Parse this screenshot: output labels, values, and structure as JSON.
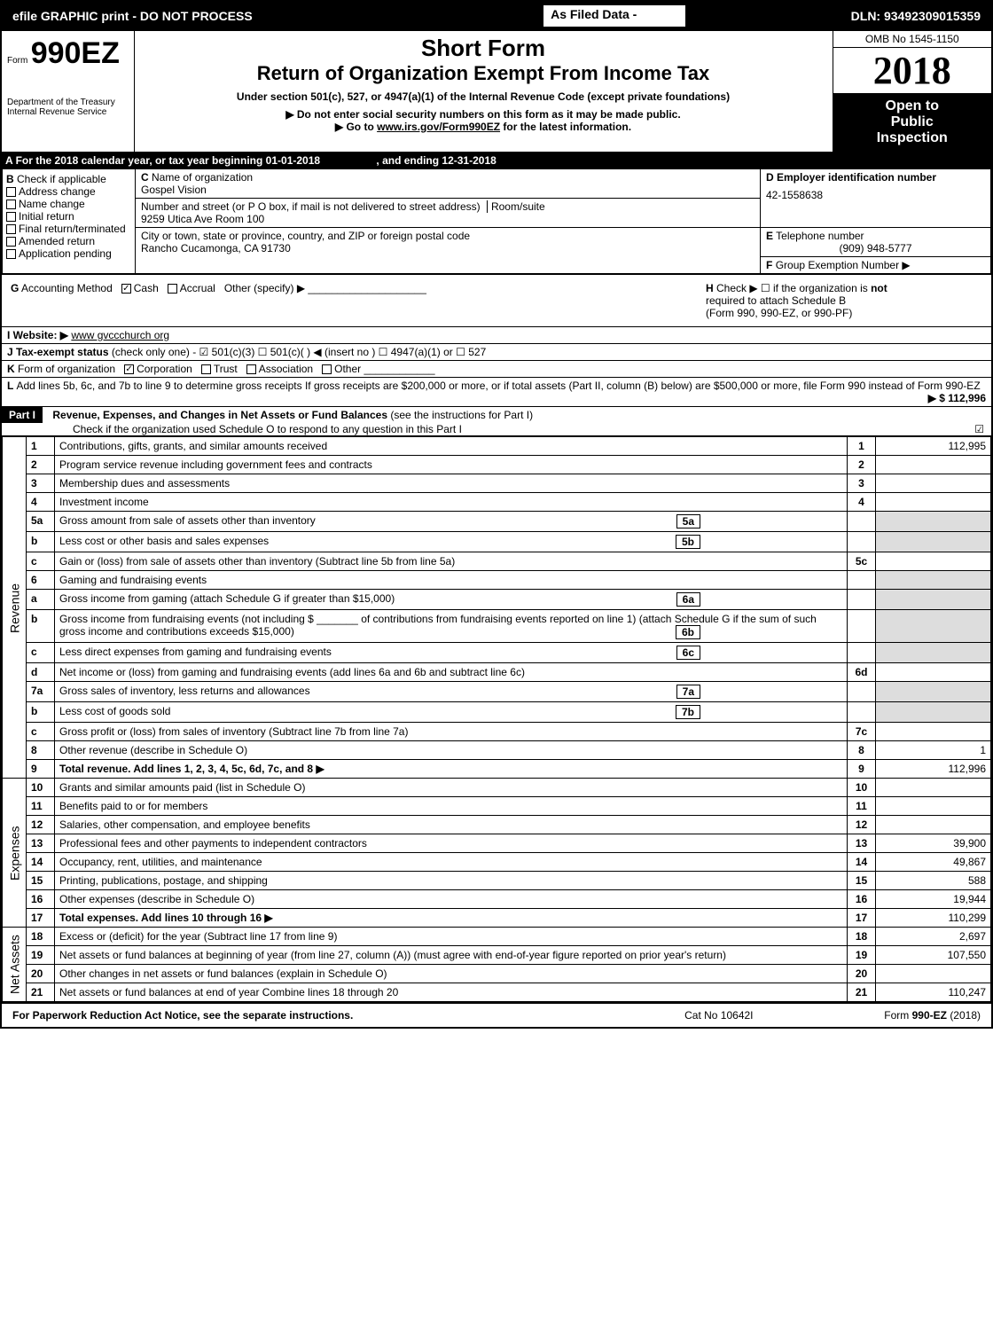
{
  "topbar": {
    "left": "efile GRAPHIC print - DO NOT PROCESS",
    "mid": "As Filed Data -",
    "right": "DLN: 93492309015359"
  },
  "header": {
    "form_prefix": "Form",
    "form_no": "990EZ",
    "short_form": "Short Form",
    "title": "Return of Organization Exempt From Income Tax",
    "subtitle": "Under section 501(c), 527, or 4947(a)(1) of the Internal Revenue Code (except private foundations)",
    "dept1": "Department of the Treasury",
    "dept2": "Internal Revenue Service",
    "note1": "▶ Do not enter social security numbers on this form as it may be made public.",
    "note2": "▶ Go to ",
    "note2_link": "www.irs.gov/Form990EZ",
    "note2_tail": " for the latest information.",
    "omb": "OMB No 1545-1150",
    "year": "2018",
    "open1": "Open to",
    "open2": "Public",
    "open3": "Inspection"
  },
  "sectionA": {
    "a_text": "For the 2018 calendar year, or tax year beginning 01-01-2018",
    "a_end": ", and ending 12-31-2018",
    "b_label": "B",
    "b_text": "Check if applicable",
    "b_items": [
      "Address change",
      "Name change",
      "Initial return",
      "Final return/terminated",
      "Amended return",
      "Application pending"
    ],
    "c_label": "C",
    "c_text": "Name of organization",
    "c_name": "Gospel Vision",
    "c_addr_label": "Number and street (or P O box, if mail is not delivered to street address)",
    "c_room": "Room/suite",
    "c_addr": "9259 Utica Ave Room 100",
    "c_city_label": "City or town, state or province, country, and ZIP or foreign postal code",
    "c_city": "Rancho Cucamonga, CA 91730",
    "d_label": "D Employer identification number",
    "d_val": "42-1558638",
    "e_label": "E",
    "e_text": "Telephone number",
    "e_val": "(909) 948-5777",
    "f_label": "F",
    "f_text": "Group Exemption Number  ▶",
    "g_label": "G",
    "g_text": "Accounting Method",
    "g_cash": "Cash",
    "g_accrual": "Accrual",
    "g_other": "Other (specify) ▶",
    "h_label": "H",
    "h_text1": "Check ▶  ☐  if the organization is ",
    "h_not": "not",
    "h_text2": "required to attach Schedule B",
    "h_text3": "(Form 990, 990-EZ, or 990-PF)",
    "i_label": "I Website: ▶",
    "i_val": "www gvccchurch org",
    "j_label": "J Tax-exempt status",
    "j_text": " (check only one) - ☑ 501(c)(3) ",
    "j_tail": "  ☐ 501(c)( ) ◀ (insert no ) ☐ 4947(a)(1) or ☐ 527",
    "k_label": "K",
    "k_text": "Form of organization",
    "k_corp": "Corporation",
    "k_trust": "Trust",
    "k_assoc": "Association",
    "k_other": "Other",
    "l_text1": "Add lines 5b, 6c, and 7b to line 9 to determine gross receipts  If gross receipts are $200,000 or more, or if total assets (Part II, column (B) below) are $500,000 or more, file Form 990 instead of Form 990-EZ",
    "l_amount": "▶ $ 112,996"
  },
  "part1": {
    "label": "Part I",
    "title": "Revenue, Expenses, and Changes in Net Assets or Fund Balances",
    "title_tail": " (see the instructions for Part I)",
    "check_text": "Check if the organization used Schedule O to respond to any question in this Part I",
    "check_mark": "☑"
  },
  "sections": {
    "revenue": "Revenue",
    "expenses": "Expenses",
    "netassets": "Net Assets"
  },
  "lines": [
    {
      "n": "1",
      "d": "Contributions, gifts, grants, and similar amounts received",
      "r": "1",
      "a": "112,995"
    },
    {
      "n": "2",
      "d": "Program service revenue including government fees and contracts",
      "r": "2",
      "a": ""
    },
    {
      "n": "3",
      "d": "Membership dues and assessments",
      "r": "3",
      "a": ""
    },
    {
      "n": "4",
      "d": "Investment income",
      "r": "4",
      "a": ""
    },
    {
      "n": "5a",
      "d": "Gross amount from sale of assets other than inventory",
      "sub": "5a"
    },
    {
      "n": "b",
      "d": "Less cost or other basis and sales expenses",
      "sub": "5b"
    },
    {
      "n": "c",
      "d": "Gain or (loss) from sale of assets other than inventory (Subtract line 5b from line 5a)",
      "r": "5c",
      "a": ""
    },
    {
      "n": "6",
      "d": "Gaming and fundraising events"
    },
    {
      "n": "a",
      "d": "Gross income from gaming (attach Schedule G if greater than $15,000)",
      "sub": "6a"
    },
    {
      "n": "b",
      "d": "Gross income from fundraising events (not including $ _______ of contributions from fundraising events reported on line 1) (attach Schedule G if the sum of such gross income and contributions exceeds $15,000)",
      "sub": "6b"
    },
    {
      "n": "c",
      "d": "Less direct expenses from gaming and fundraising events",
      "sub": "6c"
    },
    {
      "n": "d",
      "d": "Net income or (loss) from gaming and fundraising events (add lines 6a and 6b and subtract line 6c)",
      "r": "6d",
      "a": ""
    },
    {
      "n": "7a",
      "d": "Gross sales of inventory, less returns and allowances",
      "sub": "7a"
    },
    {
      "n": "b",
      "d": "Less cost of goods sold",
      "sub": "7b"
    },
    {
      "n": "c",
      "d": "Gross profit or (loss) from sales of inventory (Subtract line 7b from line 7a)",
      "r": "7c",
      "a": ""
    },
    {
      "n": "8",
      "d": "Other revenue (describe in Schedule O)",
      "r": "8",
      "a": "1"
    },
    {
      "n": "9",
      "d": "Total revenue. Add lines 1, 2, 3, 4, 5c, 6d, 7c, and 8  ▶",
      "r": "9",
      "a": "112,996",
      "bold": true
    },
    {
      "n": "10",
      "d": "Grants and similar amounts paid (list in Schedule O)",
      "r": "10",
      "a": ""
    },
    {
      "n": "11",
      "d": "Benefits paid to or for members",
      "r": "11",
      "a": ""
    },
    {
      "n": "12",
      "d": "Salaries, other compensation, and employee benefits",
      "r": "12",
      "a": ""
    },
    {
      "n": "13",
      "d": "Professional fees and other payments to independent contractors",
      "r": "13",
      "a": "39,900"
    },
    {
      "n": "14",
      "d": "Occupancy, rent, utilities, and maintenance",
      "r": "14",
      "a": "49,867"
    },
    {
      "n": "15",
      "d": "Printing, publications, postage, and shipping",
      "r": "15",
      "a": "588"
    },
    {
      "n": "16",
      "d": "Other expenses (describe in Schedule O)",
      "r": "16",
      "a": "19,944"
    },
    {
      "n": "17",
      "d": "Total expenses. Add lines 10 through 16  ▶",
      "r": "17",
      "a": "110,299",
      "bold": true
    },
    {
      "n": "18",
      "d": "Excess or (deficit) for the year (Subtract line 17 from line 9)",
      "r": "18",
      "a": "2,697"
    },
    {
      "n": "19",
      "d": "Net assets or fund balances at beginning of year (from line 27, column (A)) (must agree with end-of-year figure reported on prior year's return)",
      "r": "19",
      "a": "107,550"
    },
    {
      "n": "20",
      "d": "Other changes in net assets or fund balances (explain in Schedule O)",
      "r": "20",
      "a": ""
    },
    {
      "n": "21",
      "d": "Net assets or fund balances at end of year  Combine lines 18 through 20",
      "r": "21",
      "a": "110,247"
    }
  ],
  "footer": {
    "left": "For Paperwork Reduction Act Notice, see the separate instructions.",
    "mid": "Cat No 10642I",
    "right": "Form ",
    "right_bold": "990-EZ",
    "right_tail": " (2018)"
  }
}
